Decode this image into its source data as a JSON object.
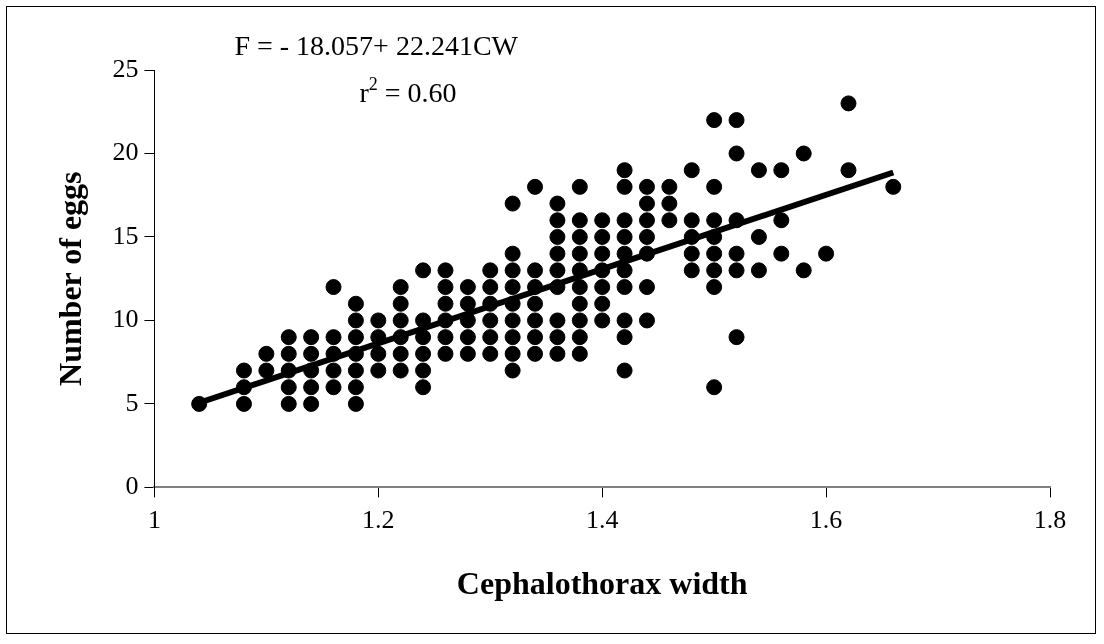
{
  "chart_data": {
    "type": "scatter",
    "xlabel": "Cephalothorax width",
    "ylabel": "Number of eggs",
    "annotations": [
      "F = - 18.057+ 22.241CW",
      "r$^{2}$ = 0.60"
    ],
    "xlim": [
      1,
      1.8
    ],
    "xticks": [
      1,
      1.2,
      1.4,
      1.6,
      1.8
    ],
    "ylim": [
      0,
      25
    ],
    "yticks": [
      0,
      5,
      10,
      15,
      20,
      25
    ],
    "grid": false,
    "legend": false,
    "marker": "circle",
    "series": [
      {
        "type": "scatter",
        "color": "#000000",
        "x": [
          1.04,
          1.08,
          1.08,
          1.08,
          1.1,
          1.1,
          1.12,
          1.12,
          1.12,
          1.12,
          1.12,
          1.14,
          1.14,
          1.14,
          1.14,
          1.14,
          1.16,
          1.16,
          1.16,
          1.16,
          1.16,
          1.18,
          1.18,
          1.18,
          1.18,
          1.18,
          1.18,
          1.18,
          1.2,
          1.2,
          1.2,
          1.2,
          1.22,
          1.22,
          1.22,
          1.22,
          1.22,
          1.22,
          1.24,
          1.24,
          1.24,
          1.24,
          1.24,
          1.24,
          1.26,
          1.26,
          1.26,
          1.26,
          1.26,
          1.26,
          1.28,
          1.28,
          1.28,
          1.28,
          1.28,
          1.3,
          1.3,
          1.3,
          1.3,
          1.3,
          1.3,
          1.32,
          1.32,
          1.32,
          1.32,
          1.32,
          1.32,
          1.32,
          1.32,
          1.32,
          1.34,
          1.34,
          1.34,
          1.34,
          1.34,
          1.34,
          1.34,
          1.36,
          1.36,
          1.36,
          1.36,
          1.36,
          1.36,
          1.36,
          1.36,
          1.36,
          1.38,
          1.38,
          1.38,
          1.38,
          1.38,
          1.38,
          1.38,
          1.38,
          1.38,
          1.38,
          1.4,
          1.4,
          1.4,
          1.4,
          1.4,
          1.4,
          1.4,
          1.42,
          1.42,
          1.42,
          1.42,
          1.42,
          1.42,
          1.42,
          1.42,
          1.42,
          1.42,
          1.44,
          1.44,
          1.44,
          1.44,
          1.44,
          1.44,
          1.44,
          1.46,
          1.46,
          1.46,
          1.48,
          1.48,
          1.48,
          1.48,
          1.48,
          1.5,
          1.5,
          1.5,
          1.5,
          1.5,
          1.5,
          1.5,
          1.5,
          1.52,
          1.52,
          1.52,
          1.52,
          1.52,
          1.52,
          1.54,
          1.54,
          1.54,
          1.56,
          1.56,
          1.56,
          1.58,
          1.58,
          1.6,
          1.62,
          1.62,
          1.66
        ],
        "values": [
          5,
          5,
          6,
          7,
          7,
          8,
          5,
          6,
          7,
          8,
          9,
          5,
          6,
          7,
          8,
          9,
          6,
          7,
          8,
          9,
          12,
          5,
          6,
          7,
          8,
          9,
          10,
          11,
          7,
          8,
          9,
          10,
          7,
          8,
          9,
          10,
          11,
          12,
          6,
          7,
          8,
          9,
          10,
          13,
          8,
          9,
          10,
          11,
          12,
          13,
          8,
          9,
          10,
          11,
          12,
          8,
          9,
          10,
          11,
          12,
          13,
          7,
          8,
          9,
          10,
          11,
          12,
          13,
          14,
          17,
          8,
          9,
          10,
          11,
          12,
          13,
          18,
          8,
          9,
          10,
          12,
          13,
          14,
          15,
          16,
          17,
          8,
          9,
          10,
          11,
          12,
          13,
          14,
          15,
          16,
          18,
          10,
          11,
          12,
          13,
          14,
          15,
          16,
          7,
          9,
          10,
          12,
          13,
          14,
          15,
          16,
          18,
          19,
          10,
          12,
          14,
          15,
          16,
          17,
          18,
          16,
          17,
          18,
          13,
          14,
          15,
          16,
          19,
          6,
          12,
          13,
          14,
          15,
          16,
          18,
          22,
          9,
          13,
          14,
          16,
          20,
          22,
          13,
          15,
          19,
          14,
          16,
          19,
          13,
          20,
          14,
          19,
          23,
          18
        ]
      },
      {
        "type": "line",
        "color": "#000000",
        "marker": "none",
        "line_style": "solid",
        "x": [
          1.04,
          1.66
        ],
        "values": [
          5.07,
          18.86
        ]
      }
    ]
  }
}
